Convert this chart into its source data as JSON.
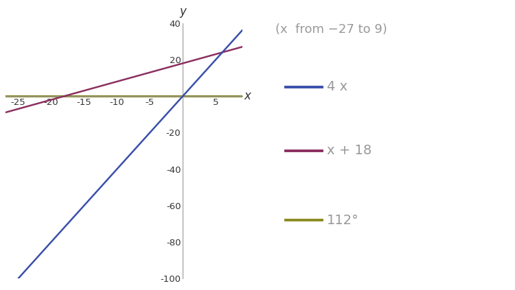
{
  "title": "(x  from −27 to 9)",
  "x_min": -27,
  "x_max": 9,
  "y_min": -100,
  "y_max": 40,
  "x_ticks": [
    -25,
    -20,
    -15,
    -10,
    -5,
    5
  ],
  "y_ticks": [
    -100,
    -80,
    -60,
    -40,
    -20,
    20,
    40
  ],
  "line1_label": "4 x",
  "line1_color": "#3a4faa",
  "line1_slope": 4,
  "line1_intercept": 0,
  "line2_label": "x + 18",
  "line2_color": "#8b3060",
  "line2_slope": 1,
  "line2_intercept": 18,
  "line3_label": "112°",
  "line3_color": "#8b8b22",
  "line3_y": 0,
  "xlabel": "x",
  "ylabel": "y",
  "bg_color": "#ffffff",
  "axis_color": "#999999",
  "tick_color": "#333333",
  "title_color": "#999999",
  "legend_label_color": "#999999",
  "figsize": [
    7.5,
    4.23
  ],
  "dpi": 100
}
